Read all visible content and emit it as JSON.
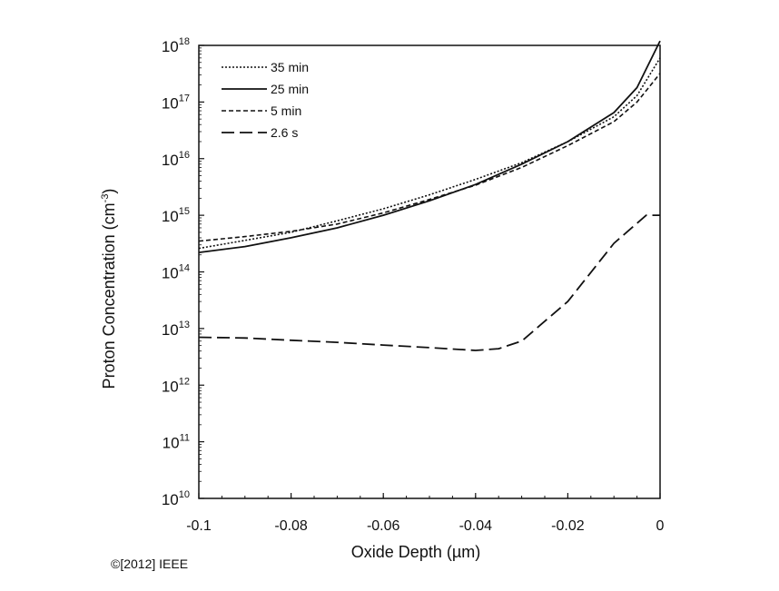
{
  "chart_data": {
    "type": "line",
    "xlabel": "Oxide Depth (µm)",
    "ylabel_main": "Proton Concentration (cm",
    "ylabel_sup": "-3",
    "ylabel_end": ")",
    "xlim": [
      -0.1,
      0
    ],
    "ylim": [
      10000000000.0,
      1e+18
    ],
    "yscale": "log",
    "xticks": [
      -0.1,
      -0.08,
      -0.06,
      -0.04,
      -0.02,
      0
    ],
    "xtick_labels": [
      "-0.1",
      "-0.08",
      "-0.06",
      "-0.04",
      "-0.02",
      "0"
    ],
    "ytick_base": "10",
    "ytick_exponents": [
      "18",
      "17",
      "16",
      "15",
      "14",
      "13",
      "12",
      "11",
      "10"
    ],
    "legend_position": "top-left",
    "series": [
      {
        "name": "35 min",
        "style": "dotted",
        "x": [
          -0.1,
          -0.09,
          -0.08,
          -0.07,
          -0.06,
          -0.05,
          -0.04,
          -0.03,
          -0.02,
          -0.01,
          -0.005,
          0
        ],
        "y": [
          260000000000000.0,
          360000000000000.0,
          500000000000000.0,
          800000000000000.0,
          1300000000000000.0,
          2300000000000000.0,
          4300000000000000.0,
          8500000000000000.0,
          2e+16,
          5.5e+16,
          1.3e+17,
          6e+17
        ]
      },
      {
        "name": "25 min",
        "style": "solid",
        "x": [
          -0.1,
          -0.09,
          -0.08,
          -0.07,
          -0.06,
          -0.05,
          -0.04,
          -0.03,
          -0.02,
          -0.01,
          -0.005,
          0
        ],
        "y": [
          220000000000000.0,
          280000000000000.0,
          400000000000000.0,
          600000000000000.0,
          1000000000000000.0,
          1800000000000000.0,
          3500000000000000.0,
          8000000000000000.0,
          2e+16,
          6.5e+16,
          1.8e+17,
          1.2e+18
        ]
      },
      {
        "name": "5 min",
        "style": "dashed",
        "x": [
          -0.1,
          -0.09,
          -0.08,
          -0.07,
          -0.06,
          -0.05,
          -0.04,
          -0.03,
          -0.02,
          -0.01,
          -0.005,
          0
        ],
        "y": [
          350000000000000.0,
          420000000000000.0,
          520000000000000.0,
          700000000000000.0,
          1100000000000000.0,
          1900000000000000.0,
          3400000000000000.0,
          7000000000000000.0,
          1.7e+16,
          4.5e+16,
          1e+17,
          3.2e+17
        ]
      },
      {
        "name": "2.6 s",
        "style": "longdash",
        "x": [
          -0.1,
          -0.09,
          -0.08,
          -0.07,
          -0.06,
          -0.05,
          -0.04,
          -0.035,
          -0.03,
          -0.02,
          -0.01,
          -0.003,
          0
        ],
        "y": [
          7000000000000.0,
          6800000000000.0,
          6200000000000.0,
          5700000000000.0,
          5100000000000.0,
          4600000000000.0,
          4100000000000.0,
          4400000000000.0,
          6000000000000.0,
          30000000000000.0,
          320000000000000.0,
          1000000000000000.0,
          1000000000000000.0
        ]
      }
    ]
  },
  "copyright": "©[2012] IEEE"
}
